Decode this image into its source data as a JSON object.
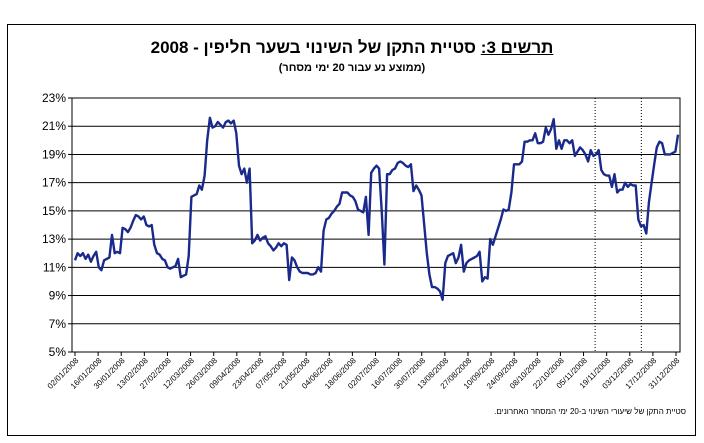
{
  "chart_data": {
    "type": "line",
    "title_lead": "תרשים 3:",
    "title_rest": "סטיית התקן של השינוי בשער חליפין - 2008",
    "subtitle": "(ממוצע נע עבור 20 ימי מסחר)",
    "footnote": "סטיית התקן של שיעורי השינוי ב-20 ימי המסחר האחרונים.",
    "y_ticks": [
      "5%",
      "7%",
      "9%",
      "11%",
      "13%",
      "15%",
      "17%",
      "19%",
      "21%",
      "23%"
    ],
    "ylim": [
      5,
      23
    ],
    "x_ticks": [
      "02/01/2008",
      "16/01/2008",
      "30/01/2008",
      "13/02/2008",
      "27/02/2008",
      "12/03/2008",
      "26/03/2008",
      "09/04/2008",
      "23/04/2008",
      "07/05/2008",
      "21/05/2008",
      "04/06/2008",
      "18/06/2008",
      "02/07/2008",
      "16/07/2008",
      "30/07/2008",
      "13/08/2008",
      "27/08/2008",
      "10/09/2008",
      "24/09/2008",
      "08/10/2008",
      "22/10/2008",
      "05/11/2008",
      "19/11/2008",
      "03/12/2008",
      "17/12/2008",
      "31/12/2008"
    ],
    "grid": "horizontal",
    "vertical_markers_after_tick": [
      22,
      24
    ],
    "line_color": "#1a2a8c",
    "series": [
      {
        "values": [
          11.5,
          12.0,
          11.8,
          12.0,
          11.6,
          11.9,
          11.4,
          11.8,
          12.1,
          11.0,
          10.8,
          11.5,
          11.6,
          11.7,
          13.3,
          12.0,
          12.1,
          12.0,
          13.8,
          13.7,
          13.5,
          13.8,
          14.3,
          14.7,
          14.6,
          14.4,
          14.6,
          14.0,
          13.9,
          14.0,
          12.6,
          12.0,
          11.9,
          11.6,
          11.5,
          11.0,
          10.9,
          11.0,
          11.1,
          11.6,
          10.3,
          10.4,
          10.5,
          11.8,
          16.0,
          16.1,
          16.2,
          16.8,
          16.5,
          17.5,
          20.0,
          21.6,
          20.9,
          21.0,
          21.3,
          21.1,
          20.9,
          21.3,
          21.4,
          21.2,
          21.4,
          20.5,
          18.2,
          17.6,
          18.0,
          17.0,
          18.0,
          12.7,
          12.9,
          13.3,
          12.9,
          13.1,
          13.2,
          12.7,
          12.5,
          12.2,
          12.4,
          12.7,
          12.5,
          12.7,
          12.6,
          10.1,
          11.7,
          11.5,
          11.0,
          10.7,
          10.6,
          10.6,
          10.6,
          10.5,
          10.5,
          10.6,
          11.0,
          10.7,
          13.6,
          14.4,
          14.5,
          14.8,
          15.0,
          15.3,
          15.5,
          16.3,
          16.3,
          16.3,
          16.1,
          16.0,
          15.7,
          15.1,
          15.0,
          14.9,
          16.0,
          13.3,
          17.7,
          18.0,
          18.2,
          18.0,
          14.9,
          11.2,
          17.6,
          17.6,
          17.9,
          18.0,
          18.4,
          18.5,
          18.4,
          18.2,
          18.1,
          18.3,
          16.4,
          16.8,
          16.5,
          16.1,
          14.1,
          12.0,
          10.5,
          9.6,
          9.6,
          9.5,
          9.3,
          8.7,
          11.3,
          11.8,
          11.9,
          12.0,
          11.3,
          11.7,
          12.6,
          10.7,
          11.3,
          11.5,
          11.6,
          11.7,
          11.8,
          12.1,
          10.0,
          10.3,
          10.2,
          13.0,
          12.6,
          13.2,
          13.8,
          14.4,
          15.1,
          15.0,
          15.1,
          16.3,
          18.3,
          18.3,
          18.3,
          18.5,
          19.9,
          19.9,
          20.0,
          20.0,
          20.5,
          19.8,
          19.8,
          19.9,
          20.9,
          20.4,
          20.8,
          21.5,
          19.4,
          20.0,
          19.4,
          20.0,
          20.0,
          19.8,
          20.0,
          18.9,
          19.2,
          19.5,
          19.3,
          19.0,
          18.5,
          19.3,
          18.9,
          19.0,
          19.3,
          17.9,
          17.6,
          17.5,
          17.5,
          16.7,
          17.6,
          16.3,
          16.5,
          16.5,
          17.0,
          16.7,
          16.9,
          16.8,
          16.8,
          14.4,
          13.9,
          14.0,
          13.4,
          15.6,
          17.0,
          18.3,
          19.5,
          19.9,
          19.8,
          19.0,
          19.0,
          19.0,
          19.1,
          19.2,
          20.4
        ]
      }
    ]
  }
}
